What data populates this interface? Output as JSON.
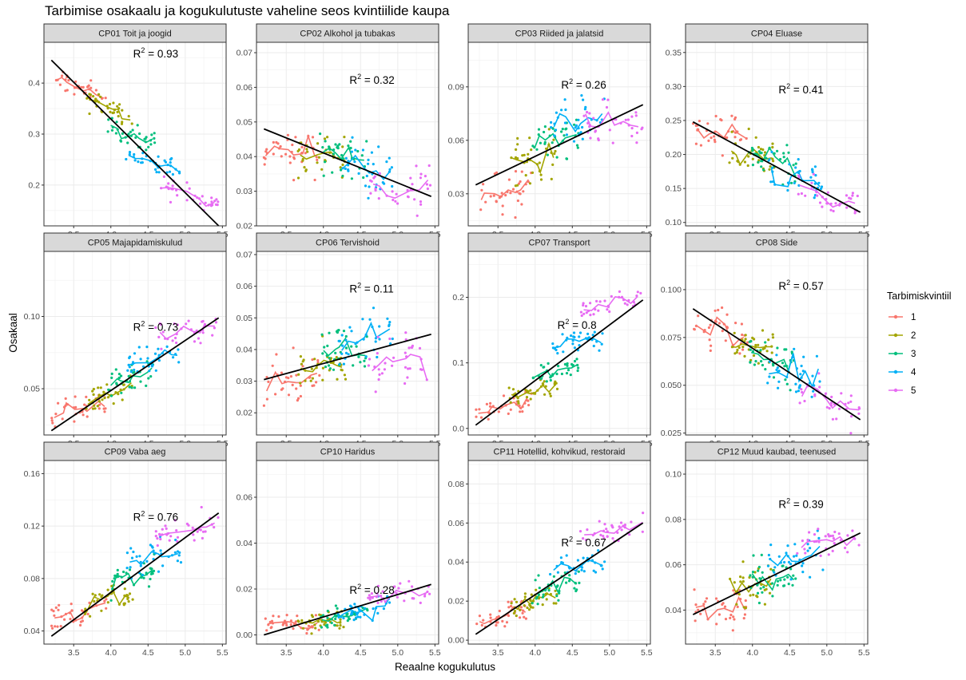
{
  "chart_data": {
    "type": "scatter",
    "title": "Tarbimise osakaalu ja kogukulutuste vaheline seos kvintiilide kaupa",
    "xlabel": "Reaalne kogukulutus",
    "ylabel": "Osakaal",
    "x_ticks": [
      "3.5",
      "4.0",
      "4.5",
      "5.0",
      "5.5"
    ],
    "x_tick_values": [
      3.5,
      4.0,
      4.5,
      5.0,
      5.5
    ],
    "xlim": [
      3.1,
      5.55
    ],
    "grid": true,
    "legend": {
      "title": "Tarbimiskvintiil",
      "position": "right",
      "items": [
        {
          "label": "1",
          "color": "#F8766D"
        },
        {
          "label": "2",
          "color": "#A3A500"
        },
        {
          "label": "3",
          "color": "#00BF7D"
        },
        {
          "label": "4",
          "color": "#00B0F6"
        },
        {
          "label": "5",
          "color": "#E76BF3"
        }
      ]
    },
    "quintile_x_ranges": [
      [
        3.2,
        3.95
      ],
      [
        3.65,
        4.3
      ],
      [
        3.95,
        4.6
      ],
      [
        4.2,
        4.95
      ],
      [
        4.6,
        5.45
      ]
    ],
    "regression_line_color": "#000000",
    "facets": [
      {
        "label": "CP01 Toit ja joogid",
        "r2": "0.93",
        "ylim": [
          0.12,
          0.48
        ],
        "y_ticks": [
          "0.2",
          "0.3",
          "0.4"
        ],
        "y_tick_values": [
          0.2,
          0.3,
          0.4
        ],
        "fit": [
          [
            3.2,
            0.445
          ],
          [
            5.45,
            0.12
          ]
        ],
        "quintile_means": [
          0.39,
          0.35,
          0.3,
          0.245,
          0.18
        ],
        "noise": 0.018,
        "label_xy": [
          4.3,
          0.45
        ]
      },
      {
        "label": "CP02 Alkohol ja tubakas",
        "r2": "0.32",
        "ylim": [
          0.02,
          0.073
        ],
        "y_ticks": [
          "0.02",
          "0.03",
          "0.04",
          "0.05",
          "0.06",
          "0.07"
        ],
        "y_tick_values": [
          0.02,
          0.03,
          0.04,
          0.05,
          0.06,
          0.07
        ],
        "fit": [
          [
            3.2,
            0.048
          ],
          [
            5.45,
            0.0285
          ]
        ],
        "quintile_means": [
          0.042,
          0.04,
          0.04,
          0.037,
          0.032
        ],
        "noise": 0.006,
        "label_xy": [
          4.35,
          0.061
        ]
      },
      {
        "label": "CP03 Riided ja jalatsid",
        "r2": "0.26",
        "ylim": [
          0.012,
          0.115
        ],
        "y_ticks": [
          "0.03",
          "0.06",
          "0.09"
        ],
        "y_tick_values": [
          0.03,
          0.06,
          0.09
        ],
        "fit": [
          [
            3.2,
            0.035
          ],
          [
            5.45,
            0.08
          ]
        ],
        "quintile_means": [
          0.03,
          0.05,
          0.062,
          0.07,
          0.07
        ],
        "noise": 0.011,
        "label_xy": [
          4.35,
          0.089
        ]
      },
      {
        "label": "CP04 Eluase",
        "r2": "0.41",
        "ylim": [
          0.095,
          0.365
        ],
        "y_ticks": [
          "0.10",
          "0.15",
          "0.20",
          "0.25",
          "0.30",
          "0.35"
        ],
        "y_tick_values": [
          0.1,
          0.15,
          0.2,
          0.25,
          0.3,
          0.35
        ],
        "fit": [
          [
            3.2,
            0.248
          ],
          [
            5.45,
            0.115
          ]
        ],
        "quintile_means": [
          0.23,
          0.2,
          0.185,
          0.165,
          0.135
        ],
        "noise": 0.025,
        "label_xy": [
          4.35,
          0.29
        ]
      },
      {
        "label": "CP05 Majapidamiskulud",
        "r2": "0.73",
        "ylim": [
          0.018,
          0.145
        ],
        "y_ticks": [
          "0.05",
          "0.10"
        ],
        "y_tick_values": [
          0.05,
          0.1
        ],
        "fit": [
          [
            3.2,
            0.021
          ],
          [
            5.45,
            0.099
          ]
        ],
        "quintile_means": [
          0.035,
          0.045,
          0.058,
          0.07,
          0.09
        ],
        "noise": 0.009,
        "label_xy": [
          4.3,
          0.09
        ]
      },
      {
        "label": "CP06 Tervishoid",
        "r2": "0.11",
        "ylim": [
          0.013,
          0.071
        ],
        "y_ticks": [
          "0.02",
          "0.03",
          "0.04",
          "0.05",
          "0.06",
          "0.07"
        ],
        "y_tick_values": [
          0.02,
          0.03,
          0.04,
          0.05,
          0.06,
          0.07
        ],
        "fit": [
          [
            3.2,
            0.0305
          ],
          [
            5.45,
            0.0448
          ]
        ],
        "quintile_means": [
          0.03,
          0.034,
          0.04,
          0.044,
          0.036
        ],
        "noise": 0.007,
        "label_xy": [
          4.35,
          0.058
        ]
      },
      {
        "label": "CP07 Transport",
        "r2": "0.8",
        "ylim": [
          -0.01,
          0.27
        ],
        "y_ticks": [
          "0.0",
          "0.1",
          "0.2"
        ],
        "y_tick_values": [
          0.0,
          0.1,
          0.2
        ],
        "fit": [
          [
            3.2,
            0.005
          ],
          [
            5.45,
            0.196
          ]
        ],
        "quintile_means": [
          0.035,
          0.06,
          0.09,
          0.13,
          0.19
        ],
        "noise": 0.016,
        "label_xy": [
          4.3,
          0.152
        ]
      },
      {
        "label": "CP08 Side",
        "r2": "0.57",
        "ylim": [
          0.024,
          0.12
        ],
        "y_ticks": [
          "0.025",
          "0.050",
          "0.075",
          "0.100"
        ],
        "y_tick_values": [
          0.025,
          0.05,
          0.075,
          0.1
        ],
        "fit": [
          [
            3.2,
            0.09
          ],
          [
            5.45,
            0.032
          ]
        ],
        "quintile_means": [
          0.078,
          0.072,
          0.063,
          0.055,
          0.042
        ],
        "noise": 0.01,
        "label_xy": [
          4.35,
          0.1
        ]
      },
      {
        "label": "CP09 Vaba aeg",
        "r2": "0.76",
        "ylim": [
          0.03,
          0.17
        ],
        "y_ticks": [
          "0.04",
          "0.08",
          "0.12",
          "0.16"
        ],
        "y_tick_values": [
          0.04,
          0.08,
          0.12,
          0.16
        ],
        "fit": [
          [
            3.2,
            0.036
          ],
          [
            5.45,
            0.13
          ]
        ],
        "quintile_means": [
          0.055,
          0.065,
          0.08,
          0.097,
          0.118
        ],
        "noise": 0.01,
        "label_xy": [
          4.3,
          0.124
        ]
      },
      {
        "label": "CP10 Haridus",
        "r2": "0.28",
        "ylim": [
          -0.004,
          0.076
        ],
        "y_ticks": [
          "0.00",
          "0.02",
          "0.04",
          "0.06"
        ],
        "y_tick_values": [
          0.0,
          0.02,
          0.04,
          0.06
        ],
        "fit": [
          [
            3.2,
            0.0
          ],
          [
            5.45,
            0.022
          ]
        ],
        "quintile_means": [
          0.004,
          0.006,
          0.008,
          0.012,
          0.018
        ],
        "noise": 0.004,
        "label_xy": [
          4.35,
          0.018
        ]
      },
      {
        "label": "CP11 Hotellid, kohvikud, restoraid",
        "r2": "0.67",
        "ylim": [
          -0.002,
          0.092
        ],
        "y_ticks": [
          "0.00",
          "0.02",
          "0.04",
          "0.06",
          "0.08"
        ],
        "y_tick_values": [
          0.0,
          0.02,
          0.04,
          0.06,
          0.08
        ],
        "fit": [
          [
            3.2,
            0.003
          ],
          [
            5.45,
            0.06
          ]
        ],
        "quintile_means": [
          0.014,
          0.02,
          0.028,
          0.038,
          0.055
        ],
        "noise": 0.006,
        "label_xy": [
          4.35,
          0.048
        ]
      },
      {
        "label": "CP12 Muud kaubad, teenused",
        "r2": "0.39",
        "ylim": [
          0.025,
          0.106
        ],
        "y_ticks": [
          "0.04",
          "0.06",
          "0.08",
          "0.10"
        ],
        "y_tick_values": [
          0.04,
          0.06,
          0.08,
          0.1
        ],
        "fit": [
          [
            3.2,
            0.038
          ],
          [
            5.45,
            0.074
          ]
        ],
        "quintile_means": [
          0.04,
          0.05,
          0.055,
          0.062,
          0.07
        ],
        "noise": 0.008,
        "label_xy": [
          4.35,
          0.085
        ]
      }
    ]
  }
}
